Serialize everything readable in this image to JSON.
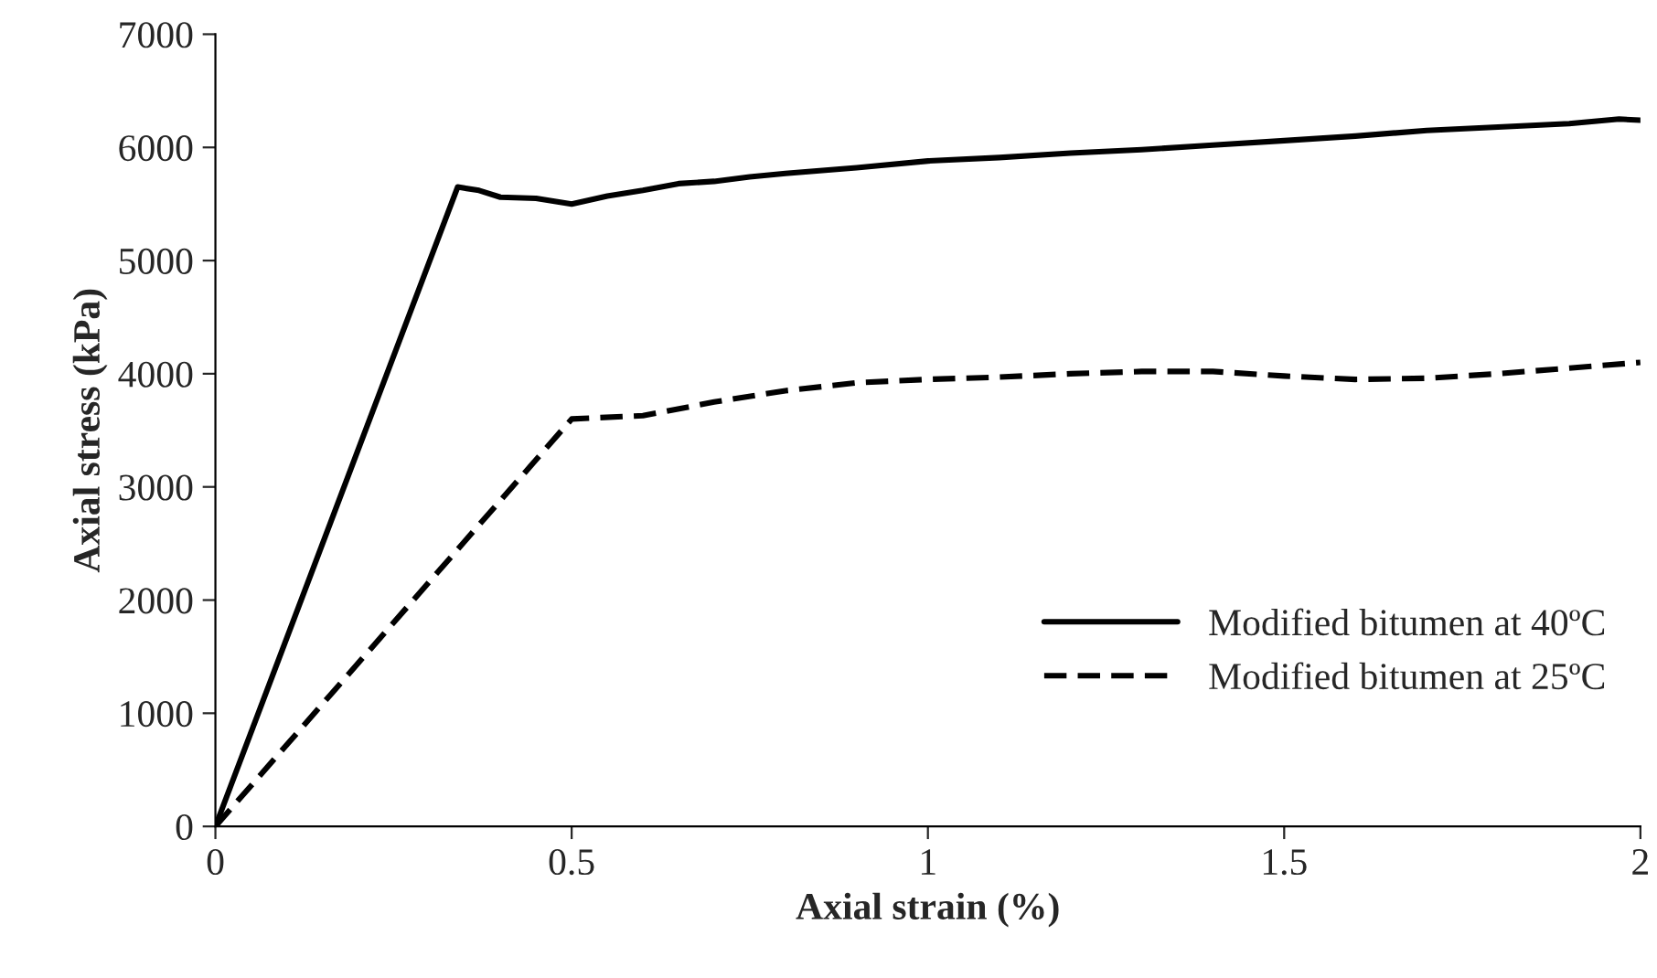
{
  "chart_data": {
    "type": "line",
    "xlabel": "Axial strain (%)",
    "ylabel": "Axial stress (kPa)",
    "xlim": [
      0,
      2
    ],
    "xticks": [
      0,
      0.5,
      1,
      1.5,
      2
    ],
    "ylim": [
      0,
      7000
    ],
    "yticks": [
      0,
      1000,
      2000,
      3000,
      4000,
      5000,
      6000,
      7000
    ],
    "grid": false,
    "legend": "bottom right",
    "series": [
      {
        "name": "Modified bitumen at 40ºC",
        "color": "#000000",
        "line_style": "solid",
        "x": [
          0,
          0.34,
          0.37,
          0.4,
          0.45,
          0.5,
          0.55,
          0.6,
          0.65,
          0.7,
          0.75,
          0.8,
          0.9,
          1.0,
          1.1,
          1.2,
          1.3,
          1.4,
          1.5,
          1.6,
          1.7,
          1.8,
          1.9,
          1.97,
          2.0
        ],
        "values": [
          0,
          5650,
          5620,
          5560,
          5550,
          5500,
          5570,
          5620,
          5680,
          5700,
          5740,
          5770,
          5820,
          5880,
          5910,
          5950,
          5980,
          6020,
          6060,
          6100,
          6150,
          6180,
          6210,
          6250,
          6240
        ]
      },
      {
        "name": "Modified bitumen at 25ºC",
        "color": "#000000",
        "line_style": "dashed",
        "x": [
          0,
          0.5,
          0.6,
          0.7,
          0.8,
          0.9,
          1.0,
          1.1,
          1.2,
          1.3,
          1.4,
          1.5,
          1.6,
          1.7,
          1.8,
          1.9,
          2.0
        ],
        "values": [
          0,
          3600,
          3630,
          3750,
          3850,
          3920,
          3950,
          3970,
          4000,
          4020,
          4020,
          3980,
          3950,
          3960,
          4000,
          4050,
          4100
        ]
      }
    ]
  }
}
